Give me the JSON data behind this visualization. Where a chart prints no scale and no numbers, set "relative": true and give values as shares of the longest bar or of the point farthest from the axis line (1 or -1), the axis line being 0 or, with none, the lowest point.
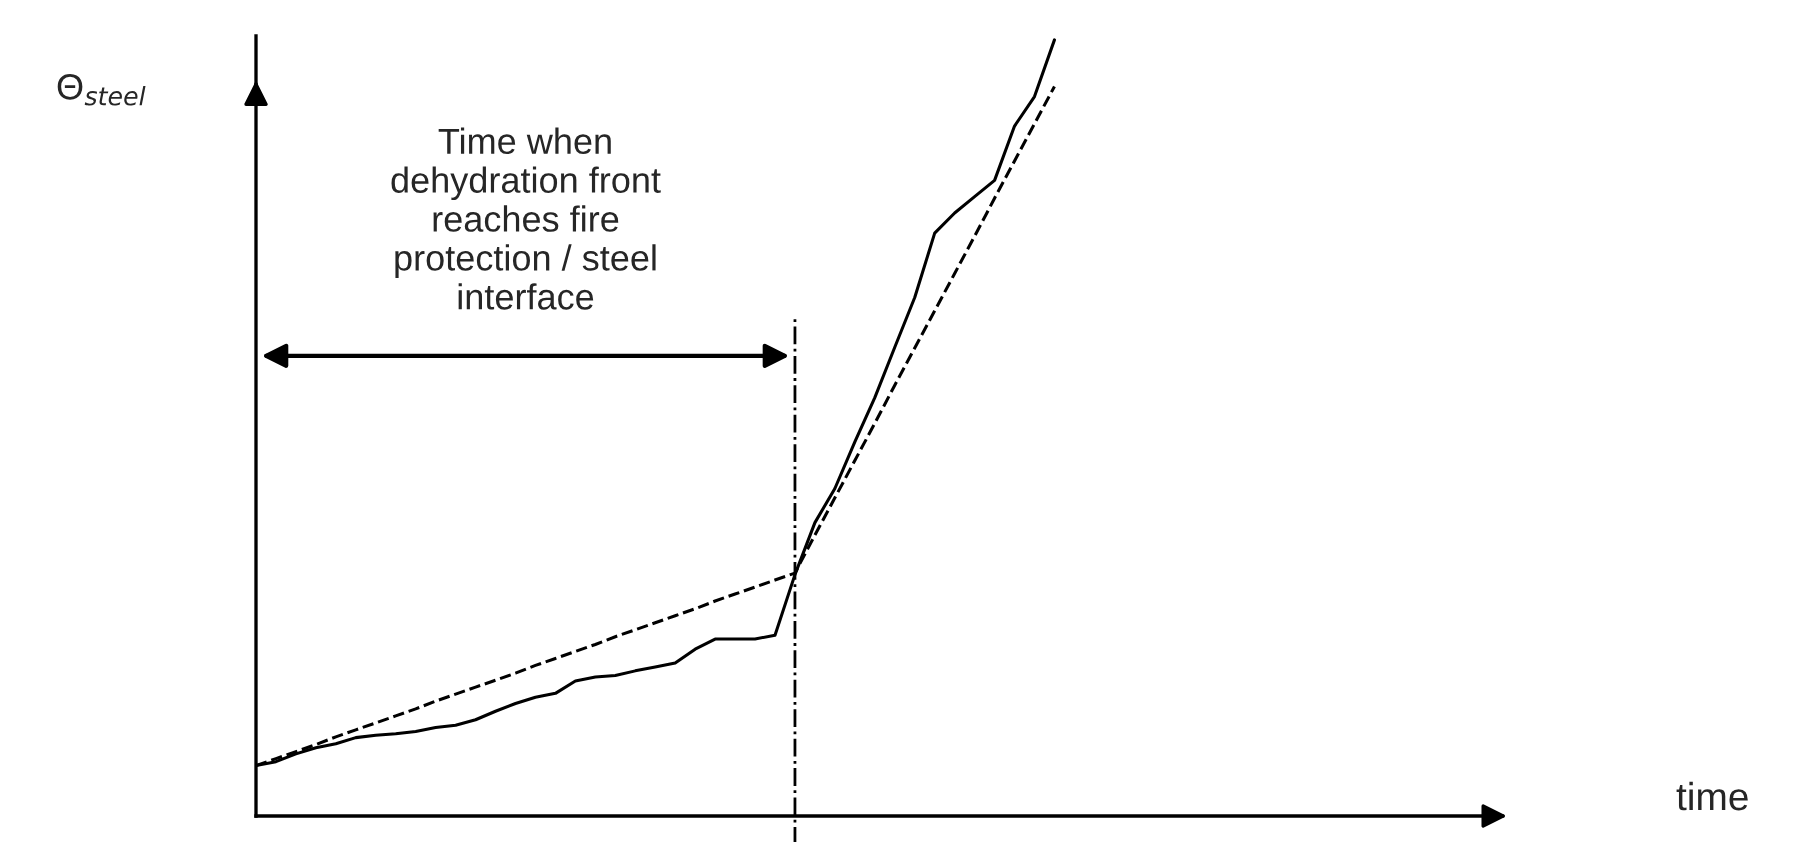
{
  "chart_data": {
    "type": "line",
    "relative": true,
    "ylabel": "Θ$_{steel}$",
    "categories": [
      null,
      null,
      null,
      null,
      null,
      null,
      null,
      null,
      null,
      null,
      null,
      null,
      null,
      null,
      null,
      null,
      null,
      null,
      null,
      null,
      null,
      null,
      null,
      null,
      null,
      null,
      null,
      null,
      null,
      null,
      null,
      null,
      null,
      null,
      null,
      null,
      null,
      null,
      null,
      null,
      null
    ],
    "series": [
      {
        "color": "#000000",
        "line_style": "solid",
        "values": [
          0.065,
          0.07,
          0.08,
          0.088,
          0.093,
          0.101,
          0.104,
          0.106,
          0.109,
          0.114,
          0.117,
          0.124,
          0.135,
          0.145,
          0.153,
          0.158,
          0.174,
          0.179,
          0.181,
          0.187,
          0.192,
          0.197,
          0.215,
          0.228,
          0.228,
          0.228,
          0.233,
          0.311,
          0.378,
          0.422,
          0.482,
          0.539,
          0.604,
          0.668,
          0.751,
          0.777,
          0.798,
          0.819,
          0.889,
          0.927,
          1
        ]
      },
      {
        "color": "#000000",
        "line_style": "dashed",
        "values": [
          0.065,
          0.074,
          0.083,
          0.092,
          0.102,
          0.111,
          0.12,
          0.129,
          0.138,
          0.148,
          0.157,
          0.166,
          0.175,
          0.184,
          0.194,
          0.203,
          0.212,
          0.221,
          0.231,
          0.24,
          0.249,
          0.258,
          0.267,
          0.277,
          0.286,
          0.295,
          0.304,
          0.313,
          0.362,
          0.41,
          0.458,
          0.506,
          0.555,
          0.603,
          0.651,
          0.699,
          0.747,
          0.796,
          0.844,
          0.892,
          0.94
        ]
      }
    ],
    "annotations": [
      "Time when\ndehydration front\nreaches fire\nprotection / steel\ninterface",
      "time"
    ],
    "grid": false,
    "legend": false,
    "marker": "none"
  }
}
